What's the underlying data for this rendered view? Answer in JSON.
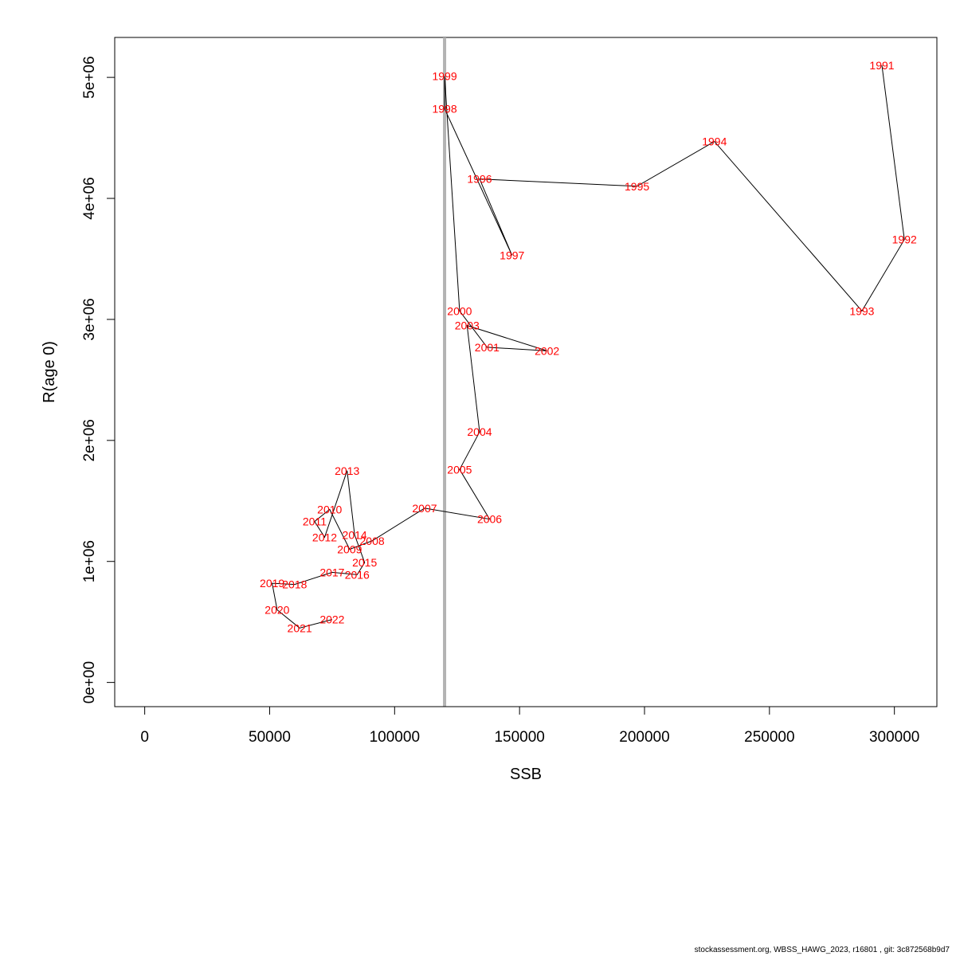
{
  "chart_data": {
    "type": "scatter",
    "xlabel": "SSB",
    "ylabel": "R(age 0)",
    "xlim": [
      -12000,
      317000
    ],
    "ylim": [
      -200000,
      5330000
    ],
    "x_ticks": [
      0,
      50000,
      100000,
      150000,
      200000,
      250000,
      300000
    ],
    "x_tick_labels": [
      "0",
      "50000",
      "100000",
      "150000",
      "200000",
      "250000",
      "300000"
    ],
    "y_ticks": [
      0,
      1000000,
      2000000,
      3000000,
      4000000,
      5000000
    ],
    "y_tick_labels": [
      "0e+00",
      "1e+06",
      "2e+06",
      "3e+06",
      "4e+06",
      "5e+06"
    ],
    "vline": 120000,
    "points_connected": true,
    "label_color": "#ff0000",
    "line_color": "#000000",
    "vline_color": "#b3b3b3",
    "points": [
      {
        "label": "1991",
        "x": 295000,
        "y": 5100000
      },
      {
        "label": "1992",
        "x": 304000,
        "y": 3660000
      },
      {
        "label": "1993",
        "x": 287000,
        "y": 3070000
      },
      {
        "label": "1994",
        "x": 228000,
        "y": 4470000
      },
      {
        "label": "1995",
        "x": 197000,
        "y": 4100000
      },
      {
        "label": "1996",
        "x": 134000,
        "y": 4160000
      },
      {
        "label": "1997",
        "x": 147000,
        "y": 3530000
      },
      {
        "label": "1998",
        "x": 120000,
        "y": 4740000
      },
      {
        "label": "1999",
        "x": 120000,
        "y": 5010000
      },
      {
        "label": "2000",
        "x": 126000,
        "y": 3070000
      },
      {
        "label": "2001",
        "x": 137000,
        "y": 2770000
      },
      {
        "label": "2002",
        "x": 161000,
        "y": 2740000
      },
      {
        "label": "2003",
        "x": 129000,
        "y": 2950000
      },
      {
        "label": "2004",
        "x": 134000,
        "y": 2070000
      },
      {
        "label": "2005",
        "x": 126000,
        "y": 1760000
      },
      {
        "label": "2006",
        "x": 138000,
        "y": 1350000
      },
      {
        "label": "2007",
        "x": 112000,
        "y": 1440000
      },
      {
        "label": "2008",
        "x": 91000,
        "y": 1170000
      },
      {
        "label": "2009",
        "x": 82000,
        "y": 1100000
      },
      {
        "label": "2010",
        "x": 74000,
        "y": 1430000
      },
      {
        "label": "2011",
        "x": 68000,
        "y": 1330000
      },
      {
        "label": "2012",
        "x": 72000,
        "y": 1200000
      },
      {
        "label": "2013",
        "x": 81000,
        "y": 1750000
      },
      {
        "label": "2014",
        "x": 84000,
        "y": 1220000
      },
      {
        "label": "2015",
        "x": 88000,
        "y": 990000
      },
      {
        "label": "2016",
        "x": 85000,
        "y": 890000
      },
      {
        "label": "2017",
        "x": 75000,
        "y": 910000
      },
      {
        "label": "2018",
        "x": 60000,
        "y": 810000
      },
      {
        "label": "2019",
        "x": 51000,
        "y": 820000
      },
      {
        "label": "2020",
        "x": 53000,
        "y": 600000
      },
      {
        "label": "2021",
        "x": 62000,
        "y": 450000
      },
      {
        "label": "2022",
        "x": 75000,
        "y": 520000
      }
    ]
  },
  "footer": "stockassessment.org, WBSS_HAWG_2023, r16801 , git: 3c872568b9d7"
}
